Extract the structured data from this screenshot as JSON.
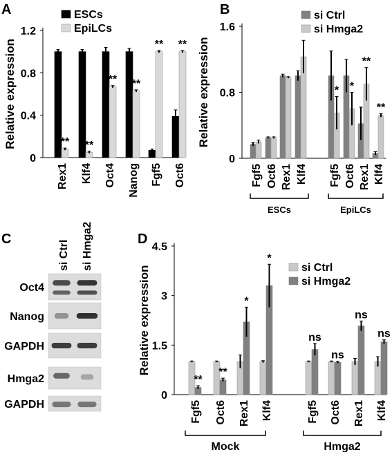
{
  "chart_data": [
    {
      "panel": "A",
      "type": "bar",
      "ylabel": "Relative expression",
      "yticks": [
        "0",
        "0.4",
        "0.8",
        "1.2"
      ],
      "ylim": [
        0,
        1.2
      ],
      "categories": [
        "Rex1",
        "Klf4",
        "Oct4",
        "Nanog",
        "Fgf5",
        "Oct6"
      ],
      "series": [
        {
          "name": "ESCs",
          "color": "#000000",
          "values": [
            1.0,
            1.0,
            1.0,
            1.0,
            0.07,
            0.39
          ],
          "errors": [
            0.02,
            0.02,
            0.04,
            0.03,
            0.01,
            0.06
          ]
        },
        {
          "name": "EpiLCs",
          "color": "#d9d9d9",
          "values": [
            0.08,
            0.05,
            0.67,
            0.63,
            1.0,
            1.0
          ],
          "errors": [
            0.01,
            0.01,
            0.01,
            0.01,
            0.01,
            0.01
          ]
        }
      ],
      "significance": [
        "**",
        "**",
        "**",
        "**",
        "**",
        "**"
      ],
      "legend_position": "top-left"
    },
    {
      "panel": "B",
      "type": "bar",
      "ylabel": "Relative expression",
      "yticks": [
        "0",
        "0.8",
        "1.6"
      ],
      "ylim": [
        0,
        1.6
      ],
      "groups": [
        "ESCs",
        "EpiLCs"
      ],
      "categories": [
        "Fgf5",
        "Oct6",
        "Rex1",
        "Klf4",
        "Fgf5",
        "Oct6",
        "Rex1",
        "Klf4"
      ],
      "series": [
        {
          "name": "si Ctrl",
          "color": "#808080",
          "values": [
            0.17,
            0.25,
            1.0,
            1.0,
            1.0,
            1.0,
            0.42,
            0.06
          ],
          "errors": [
            0.02,
            0.01,
            0.02,
            0.06,
            0.3,
            0.2,
            0.2,
            0.02
          ]
        },
        {
          "name": "si Hmga2",
          "color": "#c8c8c8",
          "values": [
            0.2,
            0.25,
            0.98,
            1.23,
            0.55,
            0.6,
            0.9,
            0.52
          ],
          "errors": [
            0.02,
            0.01,
            0.01,
            0.2,
            0.2,
            0.2,
            0.2,
            0.02
          ]
        }
      ],
      "significance": [
        "",
        "",
        "",
        "",
        "*",
        "*",
        "**",
        "**"
      ],
      "legend_position": "top-right"
    },
    {
      "panel": "D",
      "type": "bar",
      "ylabel": "Relative expression",
      "yticks": [
        "0",
        "1.5",
        "3",
        "4.5"
      ],
      "ylim": [
        0,
        4.5
      ],
      "groups": [
        "Mock",
        "Hmga2"
      ],
      "categories": [
        "Fgf5",
        "Oct6",
        "Rex1",
        "Klf4",
        "Fgf5",
        "Oct6",
        "Rex1",
        "Klf4"
      ],
      "series": [
        {
          "name": "si Ctrl",
          "color": "#c8c8c8",
          "values": [
            1.0,
            1.0,
            1.0,
            1.0,
            1.0,
            1.0,
            1.0,
            1.0
          ],
          "errors": [
            0.02,
            0.02,
            0.2,
            0.03,
            0.02,
            0.02,
            0.1,
            0.15
          ]
        },
        {
          "name": "si Hmga2",
          "color": "#808080",
          "values": [
            0.22,
            0.45,
            2.2,
            3.3,
            1.37,
            0.98,
            2.08,
            1.6
          ],
          "errors": [
            0.05,
            0.05,
            0.45,
            0.65,
            0.18,
            0.03,
            0.15,
            0.06
          ]
        }
      ],
      "significance": [
        "**",
        "**",
        "*",
        "*",
        "ns",
        "ns",
        "ns",
        "ns"
      ],
      "legend_position": "top-right"
    }
  ],
  "western_blot": {
    "panel": "C",
    "lanes": [
      "si Ctrl",
      "si Hmga2"
    ],
    "rows": [
      "Oct4",
      "Nanog",
      "GAPDH",
      "Hmga2",
      "GAPDH"
    ]
  }
}
